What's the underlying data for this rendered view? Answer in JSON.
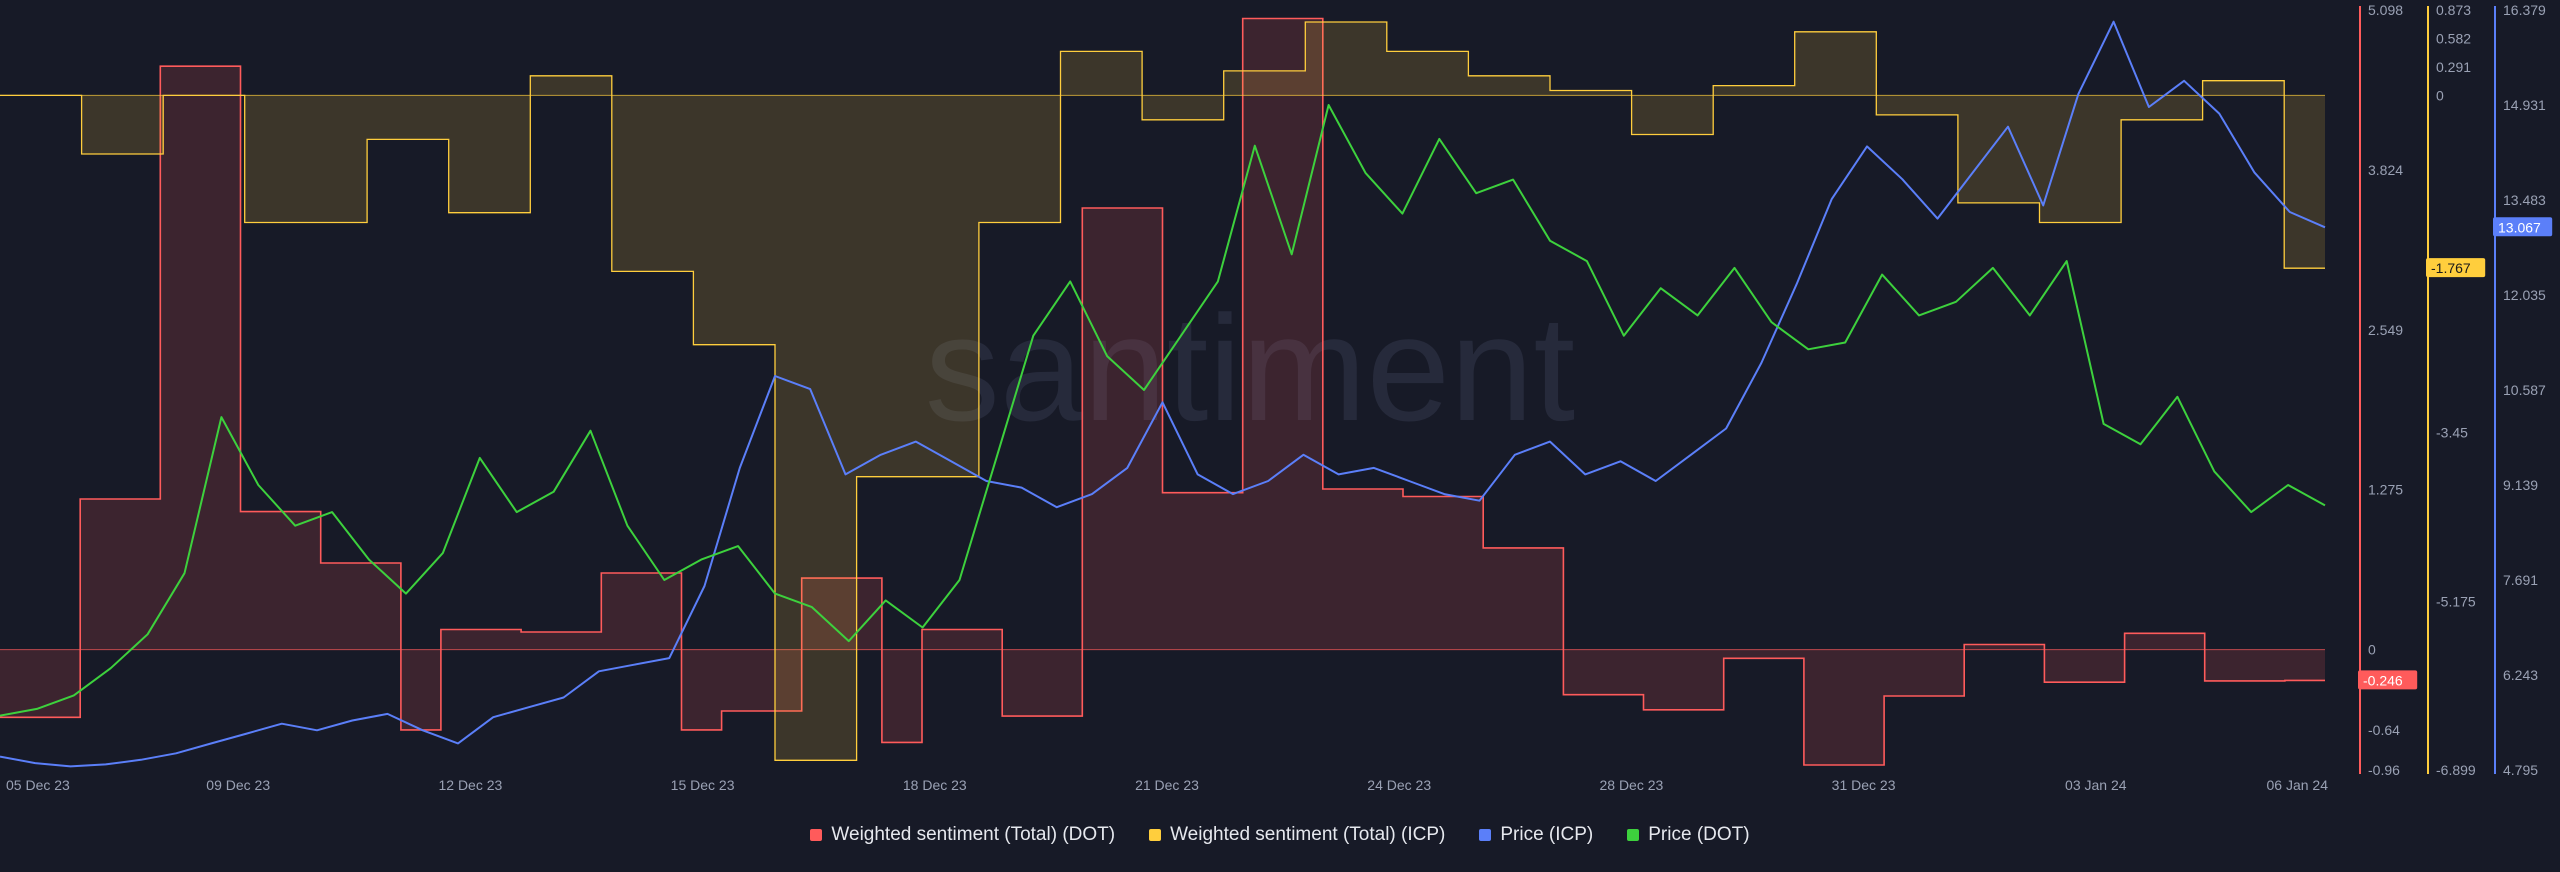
{
  "watermark": "santiment",
  "chart_data": {
    "type": "line",
    "x_ticks": [
      "05 Dec 23",
      "09 Dec 23",
      "12 Dec 23",
      "15 Dec 23",
      "18 Dec 23",
      "21 Dec 23",
      "24 Dec 23",
      "28 Dec 23",
      "31 Dec 23",
      "03 Jan 24",
      "06 Jan 24"
    ],
    "axes": {
      "dot_sentiment": {
        "ylim": [
          -0.96,
          5.098
        ],
        "ticks": [
          "5.098",
          "3.824",
          "2.549",
          "1.275",
          "0",
          "-0.64",
          "-0.96"
        ],
        "color": "#ff5b5b",
        "current": "-0.246"
      },
      "icp_sentiment": {
        "ylim": [
          -6.899,
          0.873
        ],
        "ticks": [
          "0.873",
          "0.582",
          "0.291",
          "0",
          "-1.767",
          "-3.45",
          "-5.175",
          "-6.899"
        ],
        "color": "#ffce3d",
        "current": "-1.767"
      },
      "icp_price": {
        "ylim": [
          4.795,
          16.379
        ],
        "ticks": [
          "16.379",
          "14.931",
          "13.483",
          "12.035",
          "10.587",
          "9.139",
          "7.691",
          "6.243",
          "4.795"
        ],
        "color": "#5b7ff9",
        "current": "13.067"
      }
    },
    "series": [
      {
        "name": "Weighted sentiment (Total) (DOT)",
        "color": "#ff5b5b",
        "values": [
          -0.54,
          -0.54,
          1.2,
          1.2,
          4.65,
          4.65,
          1.1,
          1.1,
          0.69,
          0.69,
          -0.64,
          0.16,
          0.16,
          0.14,
          0.14,
          0.61,
          0.61,
          -0.64,
          -0.49,
          -0.49,
          0.57,
          0.57,
          -0.74,
          0.16,
          0.16,
          -0.53,
          -0.53,
          3.52,
          3.52,
          1.25,
          1.25,
          5.03,
          5.03,
          1.28,
          1.28,
          1.22,
          1.22,
          0.81,
          0.81,
          -0.36,
          -0.36,
          -0.48,
          -0.48,
          -0.07,
          -0.07,
          -0.92,
          -0.92,
          -0.37,
          -0.37,
          0.04,
          0.04,
          -0.26,
          -0.26,
          0.13,
          0.13,
          -0.25,
          -0.25,
          -0.246
        ]
      },
      {
        "name": "Weighted sentiment (Total) (ICP)",
        "color": "#ffce3d",
        "values": [
          0,
          0,
          -0.6,
          -0.6,
          0,
          0,
          -1.3,
          -1.3,
          -1.3,
          -0.45,
          -0.45,
          -1.2,
          -1.2,
          0.2,
          0.2,
          -1.8,
          -1.8,
          -2.55,
          -2.55,
          -6.8,
          -6.8,
          -3.9,
          -3.9,
          -3.9,
          -1.3,
          -1.3,
          0.45,
          0.45,
          -0.25,
          -0.25,
          0.25,
          0.25,
          0.75,
          0.75,
          0.45,
          0.45,
          0.2,
          0.2,
          0.05,
          0.05,
          -0.4,
          -0.4,
          0.1,
          0.1,
          0.65,
          0.65,
          -0.2,
          -0.2,
          -1.1,
          -1.1,
          -1.3,
          -1.3,
          -0.25,
          -0.25,
          0.15,
          0.15,
          -1.767
        ]
      },
      {
        "name": "Price (ICP)",
        "color": "#5b7ff9",
        "values": [
          5.0,
          4.9,
          4.85,
          4.88,
          4.95,
          5.05,
          5.2,
          5.35,
          5.5,
          5.4,
          5.55,
          5.65,
          5.4,
          5.2,
          5.6,
          5.75,
          5.9,
          6.3,
          6.4,
          6.5,
          7.6,
          9.4,
          10.8,
          10.6,
          9.3,
          9.6,
          9.8,
          9.5,
          9.2,
          9.1,
          8.8,
          9.0,
          9.4,
          10.4,
          9.3,
          9.0,
          9.2,
          9.6,
          9.3,
          9.4,
          9.2,
          9.0,
          8.9,
          9.6,
          9.8,
          9.3,
          9.5,
          9.2,
          9.6,
          10.0,
          11.0,
          12.2,
          13.5,
          14.3,
          13.8,
          13.2,
          13.9,
          14.6,
          13.4,
          15.1,
          16.2,
          14.9,
          15.3,
          14.8,
          13.9,
          13.3,
          13.067
        ]
      },
      {
        "name": "Price (DOT)",
        "color": "#3dd13d",
        "values": [
          0.4,
          0.45,
          0.55,
          0.75,
          1.0,
          1.45,
          2.6,
          2.1,
          1.8,
          1.9,
          1.55,
          1.3,
          1.6,
          2.3,
          1.9,
          2.05,
          2.5,
          1.8,
          1.4,
          1.55,
          1.65,
          1.3,
          1.2,
          0.95,
          1.25,
          1.05,
          1.4,
          2.3,
          3.2,
          3.6,
          3.05,
          2.8,
          3.2,
          3.6,
          4.6,
          3.8,
          4.9,
          4.4,
          4.1,
          4.65,
          4.25,
          4.35,
          3.9,
          3.75,
          3.2,
          3.55,
          3.35,
          3.7,
          3.3,
          3.1,
          3.15,
          3.65,
          3.35,
          3.45,
          3.7,
          3.35,
          3.75,
          2.55,
          2.4,
          2.75,
          2.2,
          1.9,
          2.1,
          1.95
        ]
      }
    ],
    "legend": [
      "Weighted sentiment (Total) (DOT)",
      "Weighted sentiment (Total) (ICP)",
      "Price (ICP)",
      "Price (DOT)"
    ],
    "legend_position": "bottom-center",
    "grid": false
  }
}
